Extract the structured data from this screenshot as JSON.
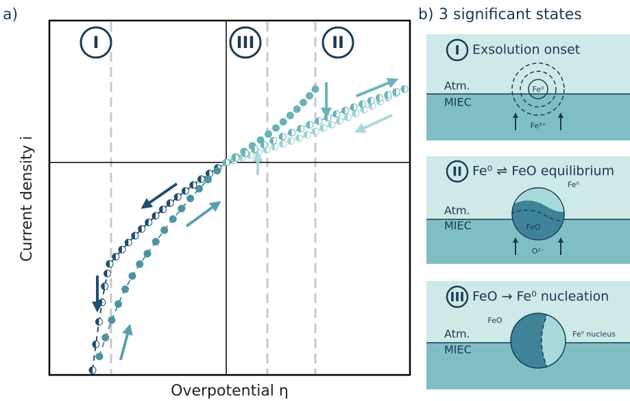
{
  "panel_a": {
    "label": "a)",
    "x_label": "Overpotential η",
    "y_label": "Current density i",
    "regions": [
      "I",
      "III",
      "II"
    ]
  },
  "panel_b": {
    "label": "b)",
    "title": "3 significant states",
    "states": [
      {
        "numeral": "I",
        "title": "Exsolution onset",
        "atm": "Atm.",
        "miec": "MIEC",
        "labels": [
          "Fe⁰",
          "Fe³⁺"
        ]
      },
      {
        "numeral": "II",
        "title": "Fe⁰ ⇌ FeO equilibrium",
        "atm": "Atm.",
        "miec": "MIEC",
        "labels": [
          "Fe⁰",
          "FeO",
          "O²⁻"
        ]
      },
      {
        "numeral": "III",
        "title": "FeO → Fe⁰ nucleation",
        "atm": "Atm.",
        "miec": "MIEC",
        "labels": [
          "FeO",
          "Fe⁰ nucleus"
        ]
      }
    ]
  }
}
